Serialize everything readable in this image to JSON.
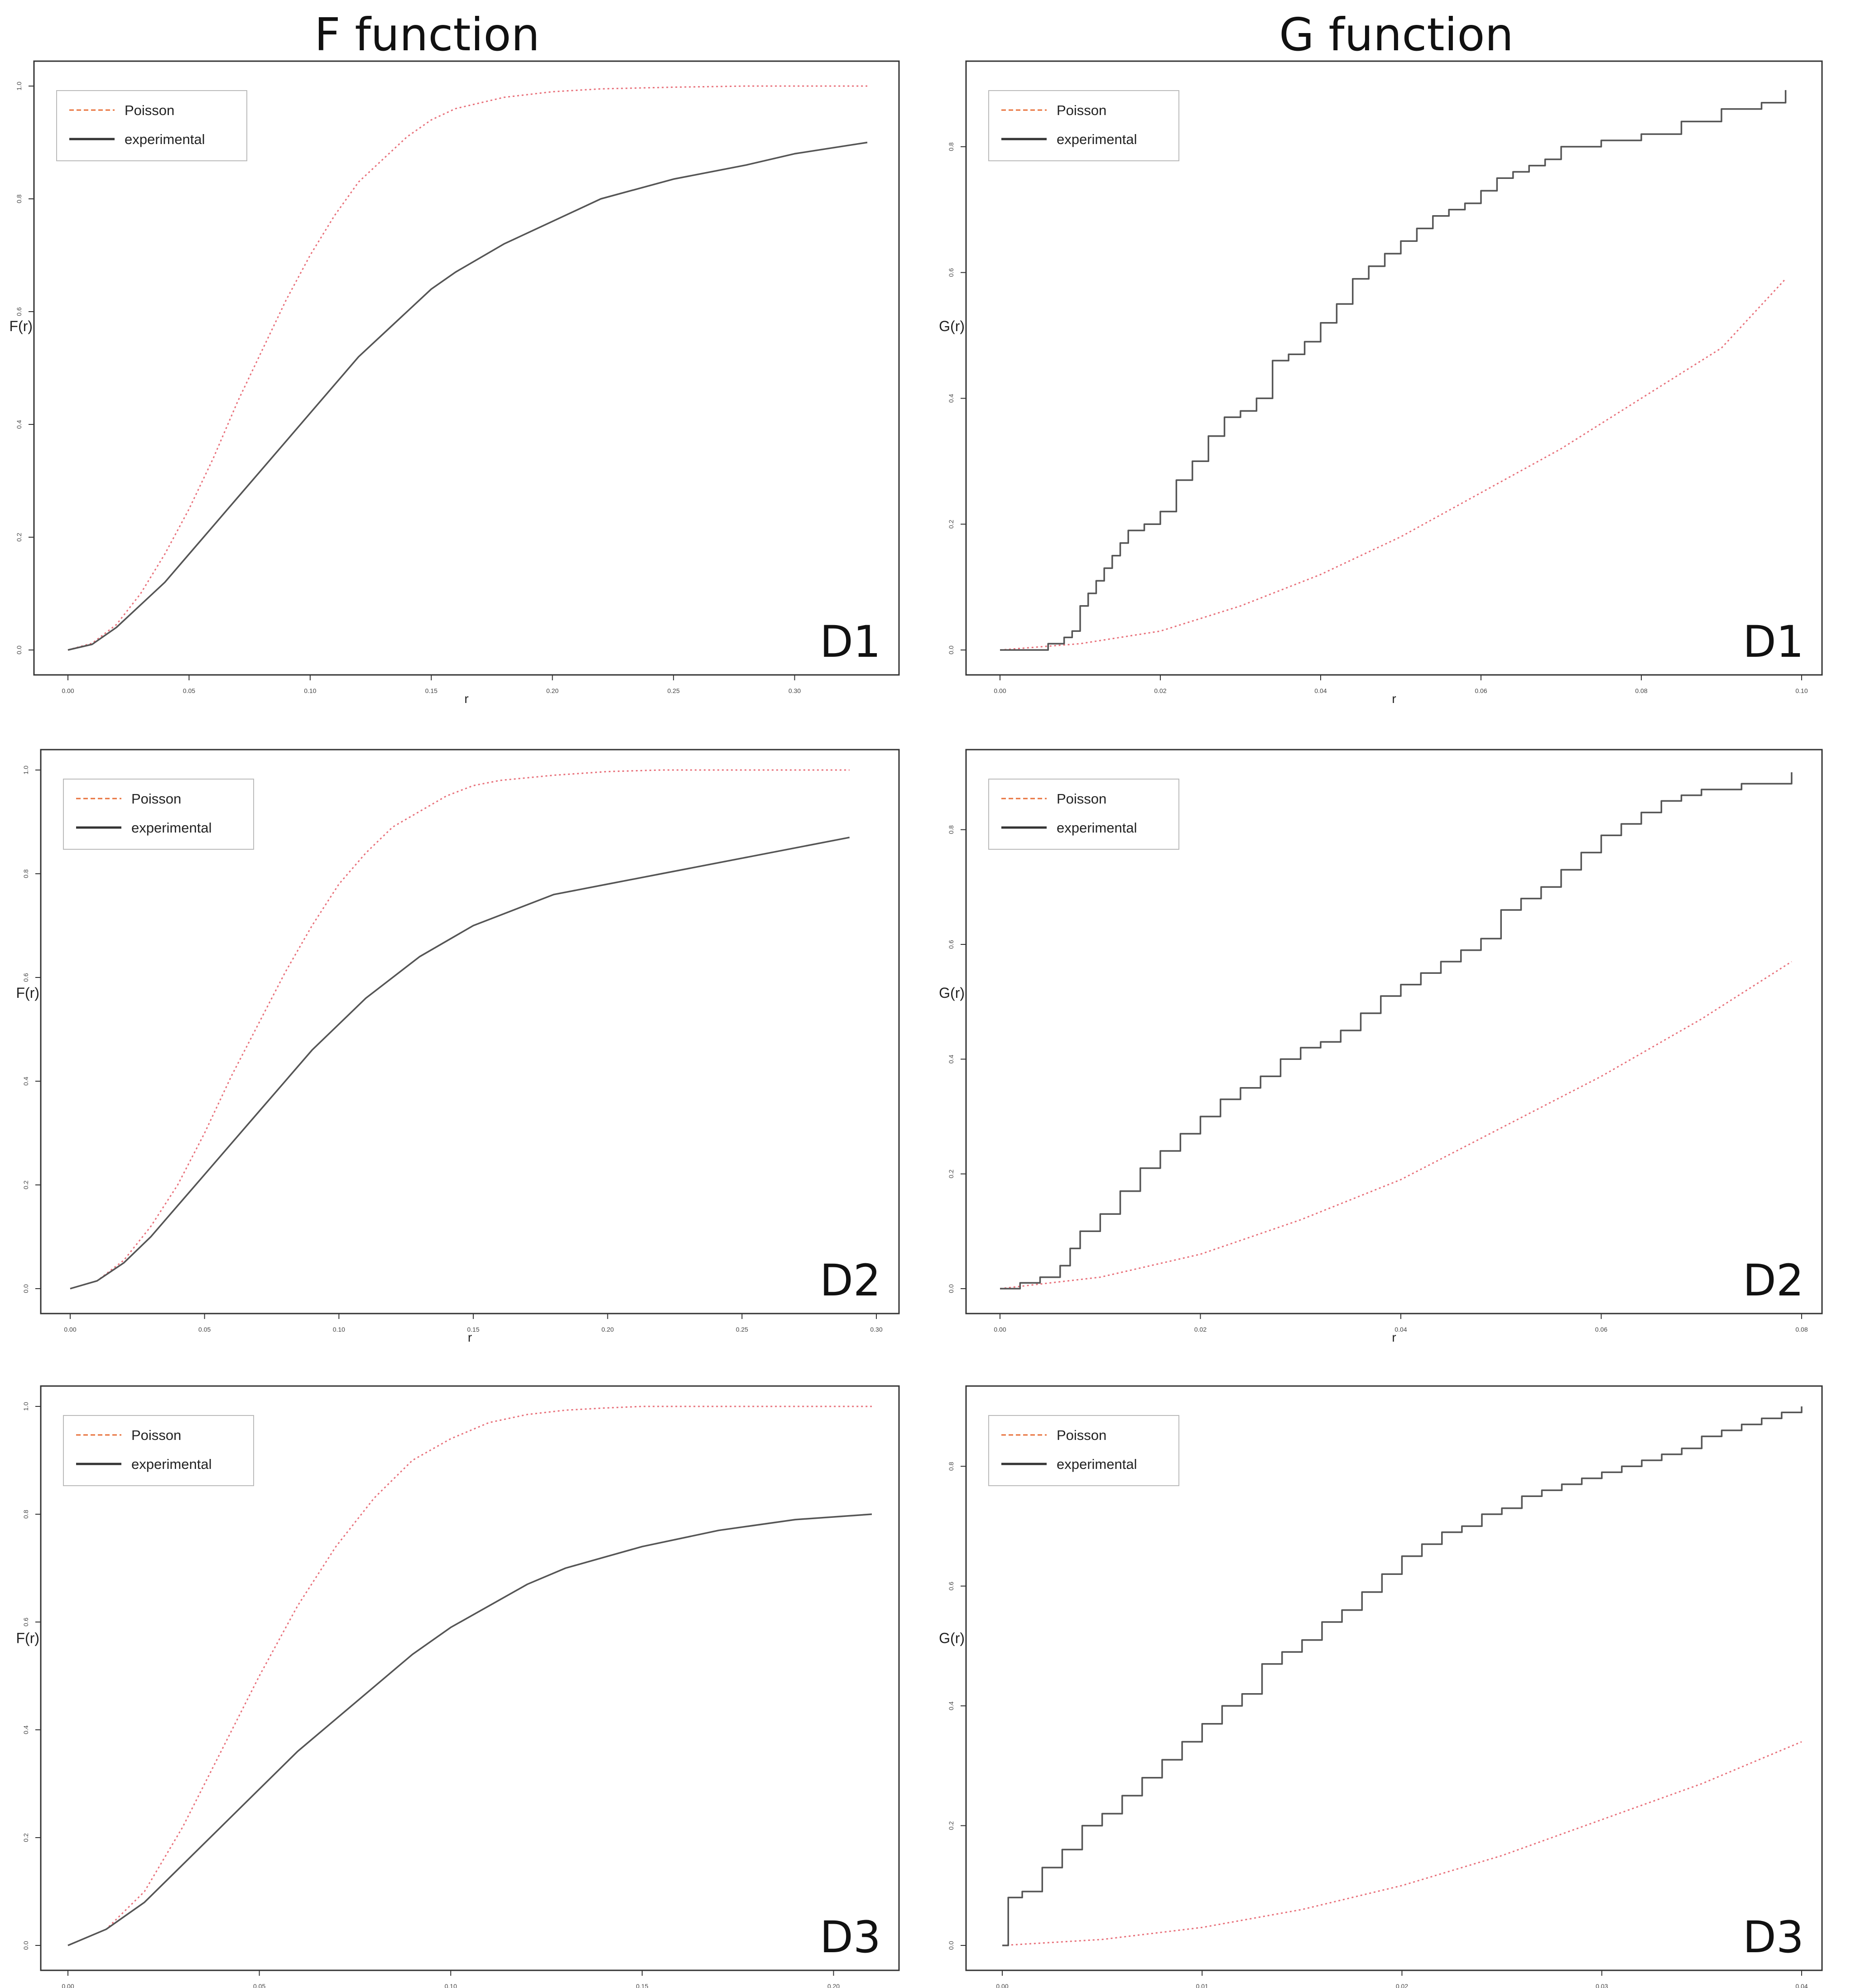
{
  "column_titles": [
    "F function",
    "G function"
  ],
  "colors": {
    "poisson": "#e8707a",
    "poisson_legend": "#e8703a",
    "experimental": "#555555",
    "frame": "#333333"
  },
  "chart_data": [
    {
      "type": "line",
      "panel": "F function, row 1",
      "label": "D1",
      "xlabel": "r",
      "ylabel": "F(r)",
      "xlim": [
        0,
        0.33
      ],
      "ylim": [
        0,
        1.0
      ],
      "xticks": [
        "0.00",
        "0.05",
        "0.10",
        "0.15",
        "0.20",
        "0.25",
        "0.30"
      ],
      "yticks": [
        "0.0",
        "0.2",
        "0.4",
        "0.6",
        "0.8",
        "1.0"
      ],
      "legend": [
        "Poisson",
        "experimental"
      ],
      "legend_position": "top-left",
      "series": [
        {
          "name": "Poisson",
          "style": "dotted",
          "x": [
            0,
            0.01,
            0.02,
            0.03,
            0.04,
            0.05,
            0.06,
            0.07,
            0.08,
            0.09,
            0.1,
            0.11,
            0.12,
            0.13,
            0.14,
            0.15,
            0.16,
            0.18,
            0.2,
            0.22,
            0.25,
            0.28,
            0.33
          ],
          "y": [
            0,
            0.012,
            0.045,
            0.1,
            0.17,
            0.25,
            0.34,
            0.44,
            0.53,
            0.62,
            0.7,
            0.77,
            0.83,
            0.87,
            0.91,
            0.94,
            0.96,
            0.98,
            0.99,
            0.995,
            0.998,
            1.0,
            1.0
          ]
        },
        {
          "name": "experimental",
          "style": "solid",
          "x": [
            0,
            0.01,
            0.02,
            0.03,
            0.04,
            0.05,
            0.06,
            0.07,
            0.08,
            0.09,
            0.1,
            0.11,
            0.12,
            0.13,
            0.14,
            0.15,
            0.16,
            0.18,
            0.2,
            0.22,
            0.25,
            0.28,
            0.3,
            0.33
          ],
          "y": [
            0,
            0.01,
            0.04,
            0.08,
            0.12,
            0.17,
            0.22,
            0.27,
            0.32,
            0.37,
            0.42,
            0.47,
            0.52,
            0.56,
            0.6,
            0.64,
            0.67,
            0.72,
            0.76,
            0.8,
            0.835,
            0.86,
            0.88,
            0.9
          ]
        }
      ]
    },
    {
      "type": "line",
      "panel": "G function, row 1",
      "label": "D1",
      "xlabel": "r",
      "ylabel": "G(r)",
      "xlim": [
        0,
        0.1
      ],
      "ylim": [
        0,
        0.9
      ],
      "xticks": [
        "0.00",
        "0.02",
        "0.04",
        "0.06",
        "0.08",
        "0.10"
      ],
      "yticks": [
        "0.0",
        "0.2",
        "0.4",
        "0.6",
        "0.8"
      ],
      "legend": [
        "Poisson",
        "experimental"
      ],
      "legend_position": "top-left",
      "series": [
        {
          "name": "Poisson",
          "style": "dotted",
          "x": [
            0,
            0.01,
            0.02,
            0.03,
            0.04,
            0.05,
            0.06,
            0.07,
            0.08,
            0.09,
            0.098
          ],
          "y": [
            0,
            0.01,
            0.03,
            0.07,
            0.12,
            0.18,
            0.25,
            0.32,
            0.4,
            0.48,
            0.59
          ]
        },
        {
          "name": "experimental",
          "style": "steps",
          "x": [
            0,
            0.006,
            0.008,
            0.009,
            0.01,
            0.011,
            0.012,
            0.013,
            0.014,
            0.015,
            0.016,
            0.018,
            0.02,
            0.022,
            0.024,
            0.026,
            0.028,
            0.03,
            0.032,
            0.034,
            0.036,
            0.038,
            0.04,
            0.042,
            0.044,
            0.046,
            0.048,
            0.05,
            0.052,
            0.054,
            0.056,
            0.058,
            0.06,
            0.062,
            0.064,
            0.066,
            0.068,
            0.07,
            0.075,
            0.08,
            0.085,
            0.09,
            0.095,
            0.098
          ],
          "y": [
            0,
            0.01,
            0.02,
            0.03,
            0.07,
            0.09,
            0.11,
            0.13,
            0.15,
            0.17,
            0.19,
            0.2,
            0.22,
            0.27,
            0.3,
            0.34,
            0.37,
            0.38,
            0.4,
            0.46,
            0.47,
            0.49,
            0.52,
            0.55,
            0.59,
            0.61,
            0.63,
            0.65,
            0.67,
            0.69,
            0.7,
            0.71,
            0.73,
            0.75,
            0.76,
            0.77,
            0.78,
            0.8,
            0.81,
            0.82,
            0.84,
            0.86,
            0.87,
            0.89
          ]
        }
      ]
    },
    {
      "type": "line",
      "panel": "F function, row 2",
      "label": "D2",
      "xlabel": "r",
      "ylabel": "F(r)",
      "xlim": [
        0,
        0.3
      ],
      "ylim": [
        0,
        1.0
      ],
      "xticks": [
        "0.00",
        "0.05",
        "0.10",
        "0.15",
        "0.20",
        "0.25",
        "0.30"
      ],
      "yticks": [
        "0.0",
        "0.2",
        "0.4",
        "0.6",
        "0.8",
        "1.0"
      ],
      "legend": [
        "Poisson",
        "experimental"
      ],
      "legend_position": "top-left",
      "series": [
        {
          "name": "Poisson",
          "style": "dotted",
          "x": [
            0,
            0.01,
            0.02,
            0.03,
            0.04,
            0.05,
            0.06,
            0.07,
            0.08,
            0.09,
            0.1,
            0.11,
            0.12,
            0.13,
            0.14,
            0.15,
            0.16,
            0.18,
            0.2,
            0.22,
            0.25,
            0.29
          ],
          "y": [
            0,
            0.015,
            0.055,
            0.12,
            0.2,
            0.3,
            0.41,
            0.51,
            0.61,
            0.7,
            0.78,
            0.84,
            0.89,
            0.92,
            0.95,
            0.97,
            0.98,
            0.99,
            0.997,
            1.0,
            1.0,
            1.0
          ]
        },
        {
          "name": "experimental",
          "style": "solid",
          "x": [
            0,
            0.01,
            0.02,
            0.03,
            0.04,
            0.05,
            0.06,
            0.07,
            0.08,
            0.09,
            0.1,
            0.11,
            0.12,
            0.13,
            0.14,
            0.15,
            0.16,
            0.18,
            0.2,
            0.22,
            0.25,
            0.29
          ],
          "y": [
            0,
            0.015,
            0.05,
            0.1,
            0.16,
            0.22,
            0.28,
            0.34,
            0.4,
            0.46,
            0.51,
            0.56,
            0.6,
            0.64,
            0.67,
            0.7,
            0.72,
            0.76,
            0.78,
            0.8,
            0.83,
            0.87
          ]
        }
      ]
    },
    {
      "type": "line",
      "panel": "G function, row 2",
      "label": "D2",
      "xlabel": "r",
      "ylabel": "G(r)",
      "xlim": [
        0,
        0.08
      ],
      "ylim": [
        0,
        0.9
      ],
      "xticks": [
        "0.00",
        "0.02",
        "0.04",
        "0.06",
        "0.08"
      ],
      "yticks": [
        "0.0",
        "0.2",
        "0.4",
        "0.6",
        "0.8"
      ],
      "legend": [
        "Poisson",
        "experimental"
      ],
      "legend_position": "top-left",
      "series": [
        {
          "name": "Poisson",
          "style": "dotted",
          "x": [
            0,
            0.01,
            0.02,
            0.03,
            0.04,
            0.05,
            0.06,
            0.07,
            0.079
          ],
          "y": [
            0,
            0.02,
            0.06,
            0.12,
            0.19,
            0.28,
            0.37,
            0.47,
            0.57
          ]
        },
        {
          "name": "experimental",
          "style": "steps",
          "x": [
            0,
            0.002,
            0.004,
            0.006,
            0.007,
            0.008,
            0.01,
            0.012,
            0.014,
            0.016,
            0.018,
            0.02,
            0.022,
            0.024,
            0.026,
            0.028,
            0.03,
            0.032,
            0.034,
            0.036,
            0.038,
            0.04,
            0.042,
            0.044,
            0.046,
            0.048,
            0.05,
            0.052,
            0.054,
            0.056,
            0.058,
            0.06,
            0.062,
            0.064,
            0.066,
            0.068,
            0.07,
            0.074,
            0.079
          ],
          "y": [
            0,
            0.01,
            0.02,
            0.04,
            0.07,
            0.1,
            0.13,
            0.17,
            0.21,
            0.24,
            0.27,
            0.3,
            0.33,
            0.35,
            0.37,
            0.4,
            0.42,
            0.43,
            0.45,
            0.48,
            0.51,
            0.53,
            0.55,
            0.57,
            0.59,
            0.61,
            0.66,
            0.68,
            0.7,
            0.73,
            0.76,
            0.79,
            0.81,
            0.83,
            0.85,
            0.86,
            0.87,
            0.88,
            0.9
          ]
        }
      ]
    },
    {
      "type": "line",
      "panel": "F function, row 3",
      "label": "D3",
      "xlabel": "r",
      "ylabel": "F(r)",
      "xlim": [
        0,
        0.21
      ],
      "ylim": [
        0,
        1.0
      ],
      "xticks": [
        "0.00",
        "0.05",
        "0.10",
        "0.15",
        "0.20"
      ],
      "yticks": [
        "0.0",
        "0.2",
        "0.4",
        "0.6",
        "0.8",
        "1.0"
      ],
      "legend": [
        "Poisson",
        "experimental"
      ],
      "legend_position": "top-left",
      "series": [
        {
          "name": "Poisson",
          "style": "dotted",
          "x": [
            0,
            0.01,
            0.02,
            0.03,
            0.04,
            0.05,
            0.06,
            0.07,
            0.08,
            0.09,
            0.1,
            0.11,
            0.12,
            0.13,
            0.14,
            0.15,
            0.17,
            0.19,
            0.21
          ],
          "y": [
            0,
            0.03,
            0.1,
            0.22,
            0.36,
            0.5,
            0.63,
            0.74,
            0.83,
            0.9,
            0.94,
            0.97,
            0.985,
            0.993,
            0.997,
            1.0,
            1.0,
            1.0,
            1.0
          ]
        },
        {
          "name": "experimental",
          "style": "solid",
          "x": [
            0,
            0.01,
            0.02,
            0.03,
            0.04,
            0.05,
            0.06,
            0.07,
            0.08,
            0.09,
            0.1,
            0.11,
            0.12,
            0.13,
            0.14,
            0.15,
            0.17,
            0.19,
            0.21
          ],
          "y": [
            0,
            0.03,
            0.08,
            0.15,
            0.22,
            0.29,
            0.36,
            0.42,
            0.48,
            0.54,
            0.59,
            0.63,
            0.67,
            0.7,
            0.72,
            0.74,
            0.77,
            0.79,
            0.8
          ]
        }
      ]
    },
    {
      "type": "line",
      "panel": "G function, row 3",
      "label": "D3",
      "xlabel": "r",
      "ylabel": "G(r)",
      "xlim": [
        0,
        0.04
      ],
      "ylim": [
        0,
        0.9
      ],
      "xticks": [
        "0.00",
        "0.01",
        "0.02",
        "0.03",
        "0.04"
      ],
      "yticks": [
        "0.0",
        "0.2",
        "0.4",
        "0.6",
        "0.8"
      ],
      "legend": [
        "Poisson",
        "experimental"
      ],
      "legend_position": "top-left",
      "series": [
        {
          "name": "Poisson",
          "style": "dotted",
          "x": [
            0,
            0.005,
            0.01,
            0.015,
            0.02,
            0.025,
            0.03,
            0.035,
            0.04
          ],
          "y": [
            0,
            0.01,
            0.03,
            0.06,
            0.1,
            0.15,
            0.21,
            0.27,
            0.34
          ]
        },
        {
          "name": "experimental",
          "style": "steps",
          "x": [
            0,
            0.0003,
            0.001,
            0.002,
            0.003,
            0.004,
            0.005,
            0.006,
            0.007,
            0.008,
            0.009,
            0.01,
            0.011,
            0.012,
            0.013,
            0.014,
            0.015,
            0.016,
            0.017,
            0.018,
            0.019,
            0.02,
            0.021,
            0.022,
            0.023,
            0.024,
            0.025,
            0.026,
            0.027,
            0.028,
            0.029,
            0.03,
            0.031,
            0.032,
            0.033,
            0.034,
            0.035,
            0.036,
            0.037,
            0.038,
            0.039,
            0.04
          ],
          "y": [
            0,
            0.08,
            0.09,
            0.13,
            0.16,
            0.2,
            0.22,
            0.25,
            0.28,
            0.31,
            0.34,
            0.37,
            0.4,
            0.42,
            0.47,
            0.49,
            0.51,
            0.54,
            0.56,
            0.59,
            0.62,
            0.65,
            0.67,
            0.69,
            0.7,
            0.72,
            0.73,
            0.75,
            0.76,
            0.77,
            0.78,
            0.79,
            0.8,
            0.81,
            0.82,
            0.83,
            0.85,
            0.86,
            0.87,
            0.88,
            0.89,
            0.9
          ]
        }
      ]
    }
  ]
}
